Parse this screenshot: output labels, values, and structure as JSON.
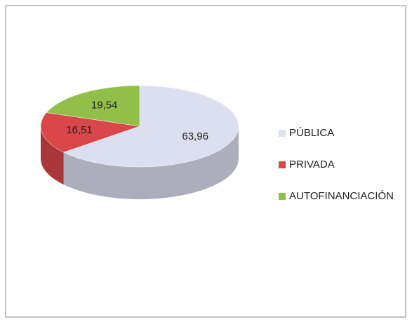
{
  "chart_data": {
    "type": "pie",
    "categories": [
      "PÚBLICA",
      "PRIVADA",
      "AUTOFINANCIACIÓN"
    ],
    "values": [
      63.96,
      16.51,
      19.54
    ],
    "value_labels": [
      "63,96",
      "16,51",
      "19,54"
    ],
    "colors": [
      "#dcdff0",
      "#d9474a",
      "#92bf4a"
    ],
    "legend": "right"
  }
}
